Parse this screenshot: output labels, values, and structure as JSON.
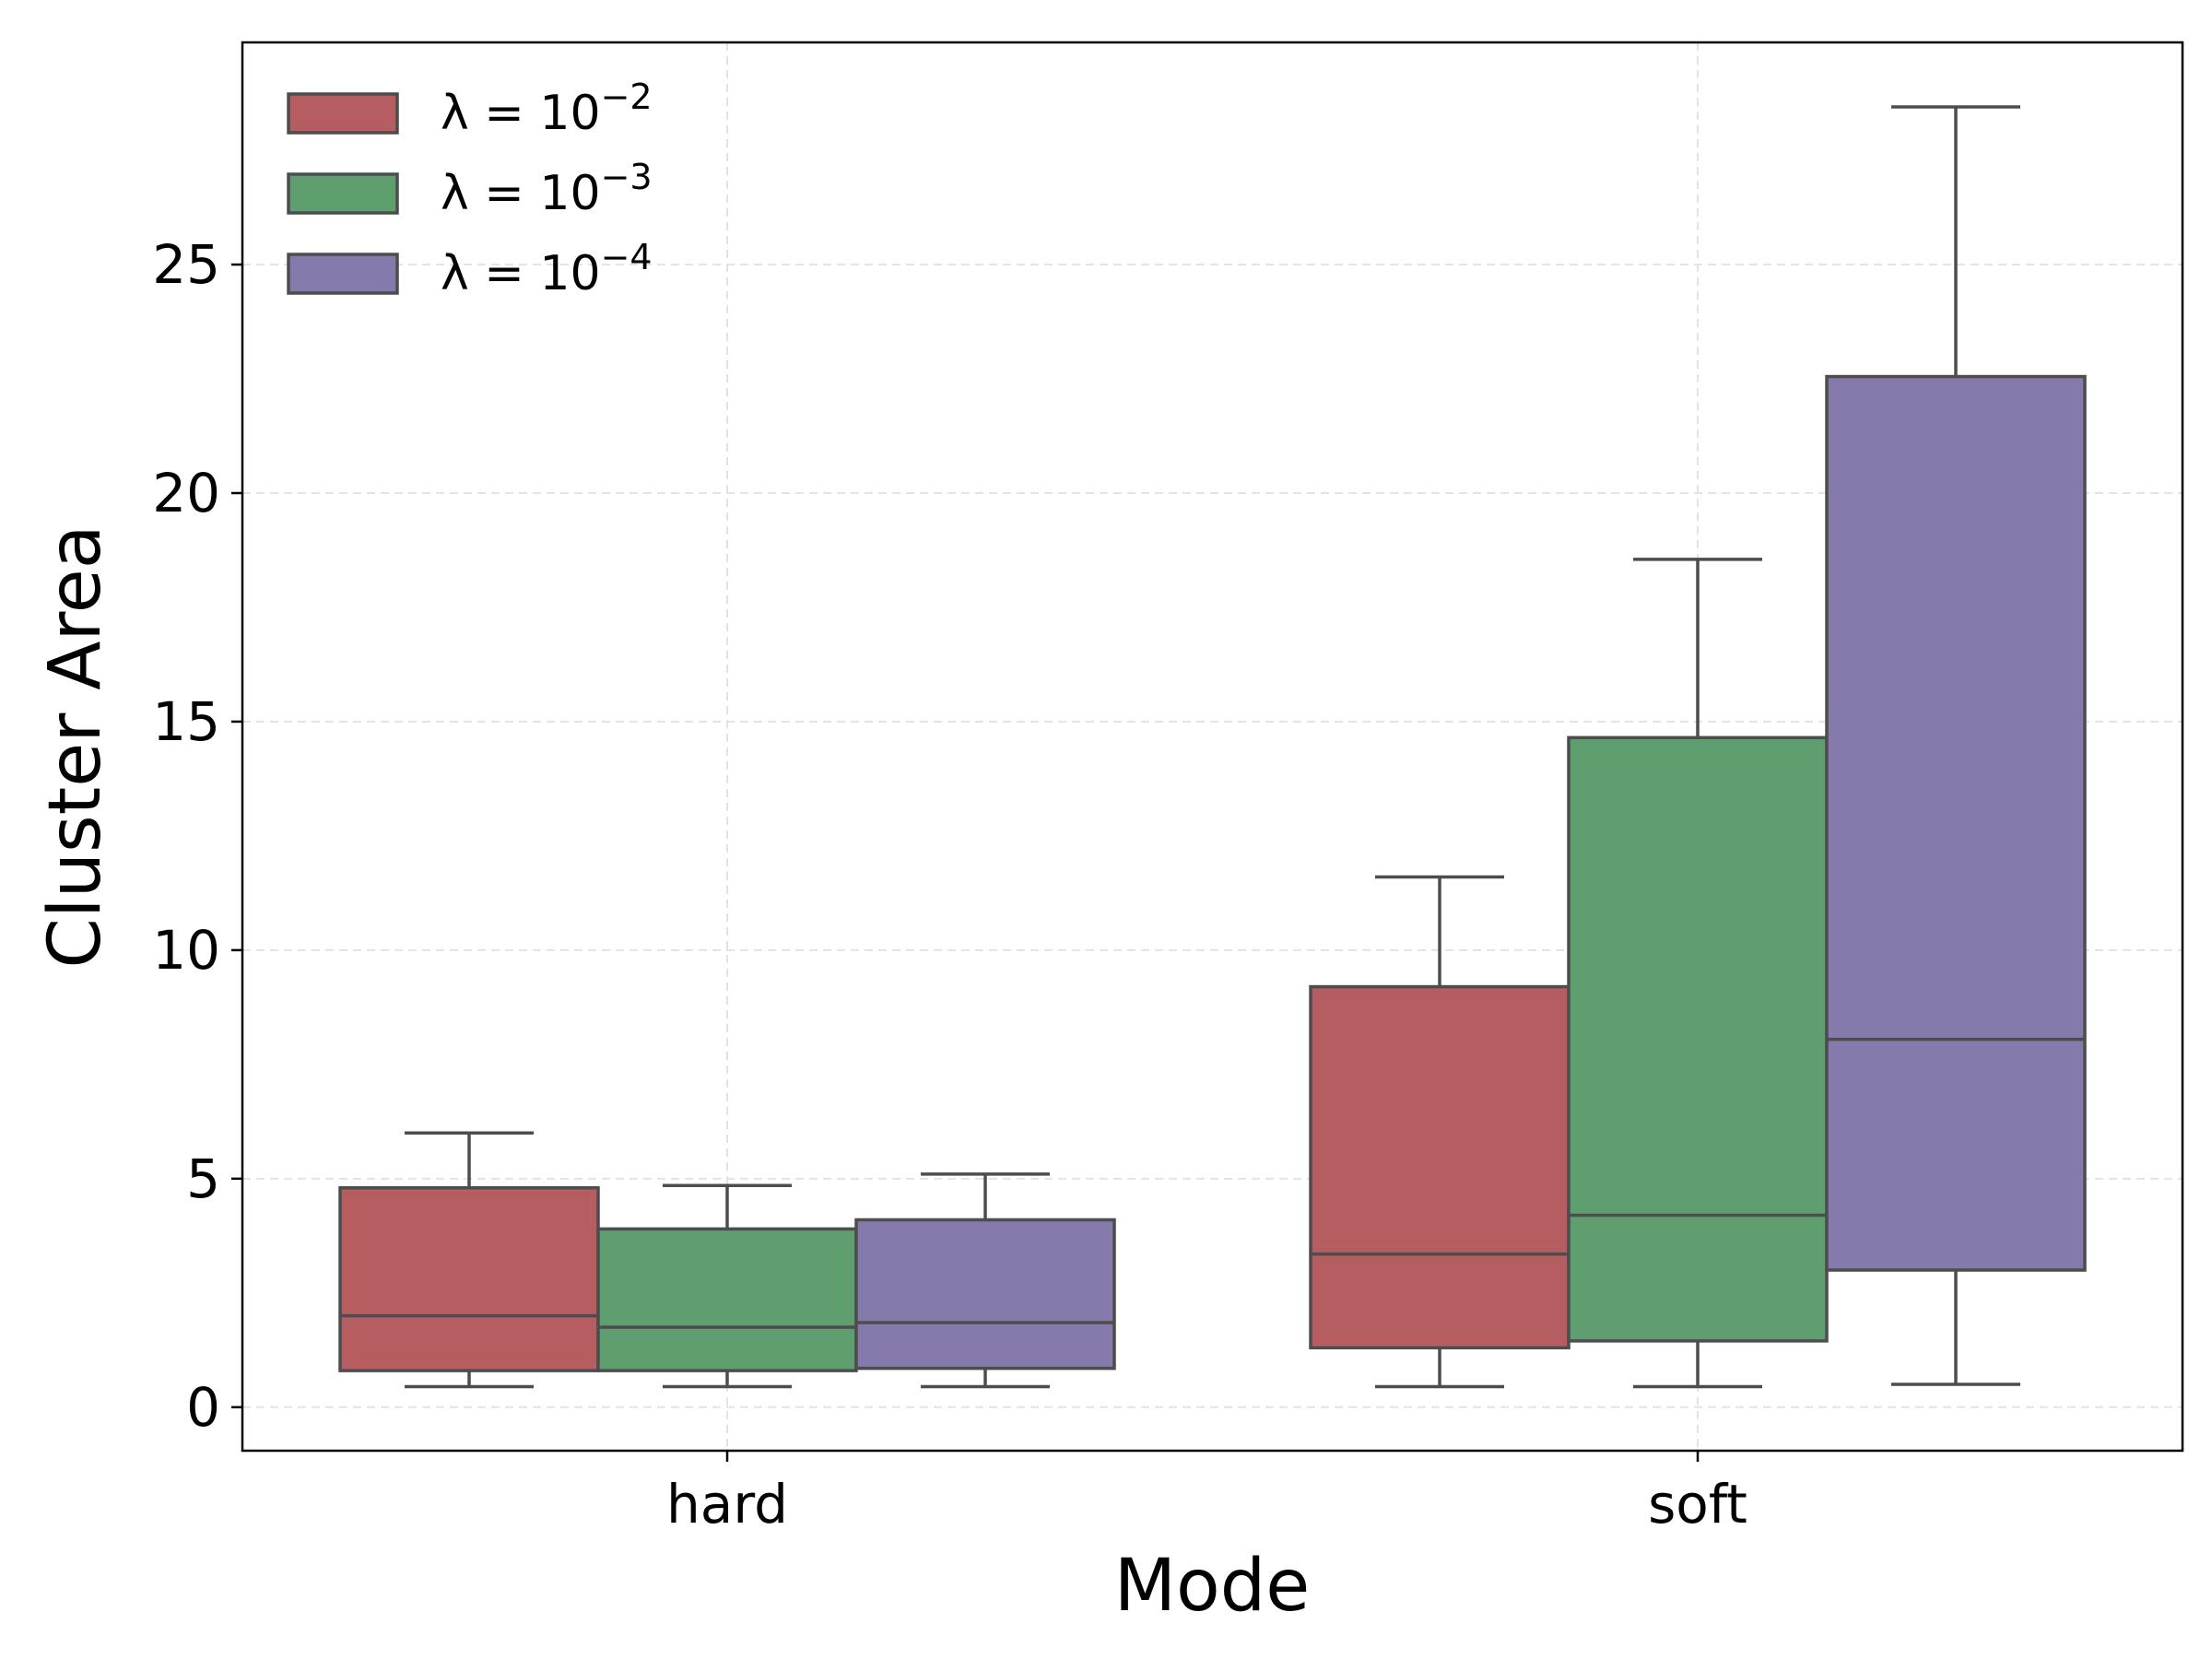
{
  "chart_data": {
    "type": "box",
    "xlabel": "Mode",
    "ylabel": "Cluster Area",
    "categories": [
      "hard",
      "soft"
    ],
    "ylim": [
      -1,
      30
    ],
    "yticks": [
      0,
      5,
      10,
      15,
      20,
      25
    ],
    "grid": true,
    "legend_position": "top-left",
    "series": [
      {
        "name": "λ = 10⁻²",
        "legend": {
          "base": "λ = 10",
          "exp": "−2"
        },
        "color": "#b55d60",
        "boxes": [
          {
            "whislo": 0.45,
            "q1": 0.8,
            "med": 2.0,
            "q3": 4.8,
            "whishi": 6.0
          },
          {
            "whislo": 0.45,
            "q1": 1.3,
            "med": 3.35,
            "q3": 9.2,
            "whishi": 11.6
          }
        ]
      },
      {
        "name": "λ = 10⁻³",
        "legend": {
          "base": "λ = 10",
          "exp": "−3"
        },
        "color": "#5f9e6e",
        "boxes": [
          {
            "whislo": 0.45,
            "q1": 0.8,
            "med": 1.75,
            "q3": 3.9,
            "whishi": 4.85
          },
          {
            "whislo": 0.45,
            "q1": 1.45,
            "med": 4.2,
            "q3": 14.65,
            "whishi": 18.55
          }
        ]
      },
      {
        "name": "λ = 10⁻⁴",
        "legend": {
          "base": "λ = 10",
          "exp": "−4"
        },
        "color": "#857aab",
        "boxes": [
          {
            "whislo": 0.45,
            "q1": 0.85,
            "med": 1.85,
            "q3": 4.1,
            "whishi": 5.1
          },
          {
            "whislo": 0.5,
            "q1": 3.0,
            "med": 8.05,
            "q3": 22.55,
            "whishi": 28.45
          }
        ]
      }
    ]
  }
}
